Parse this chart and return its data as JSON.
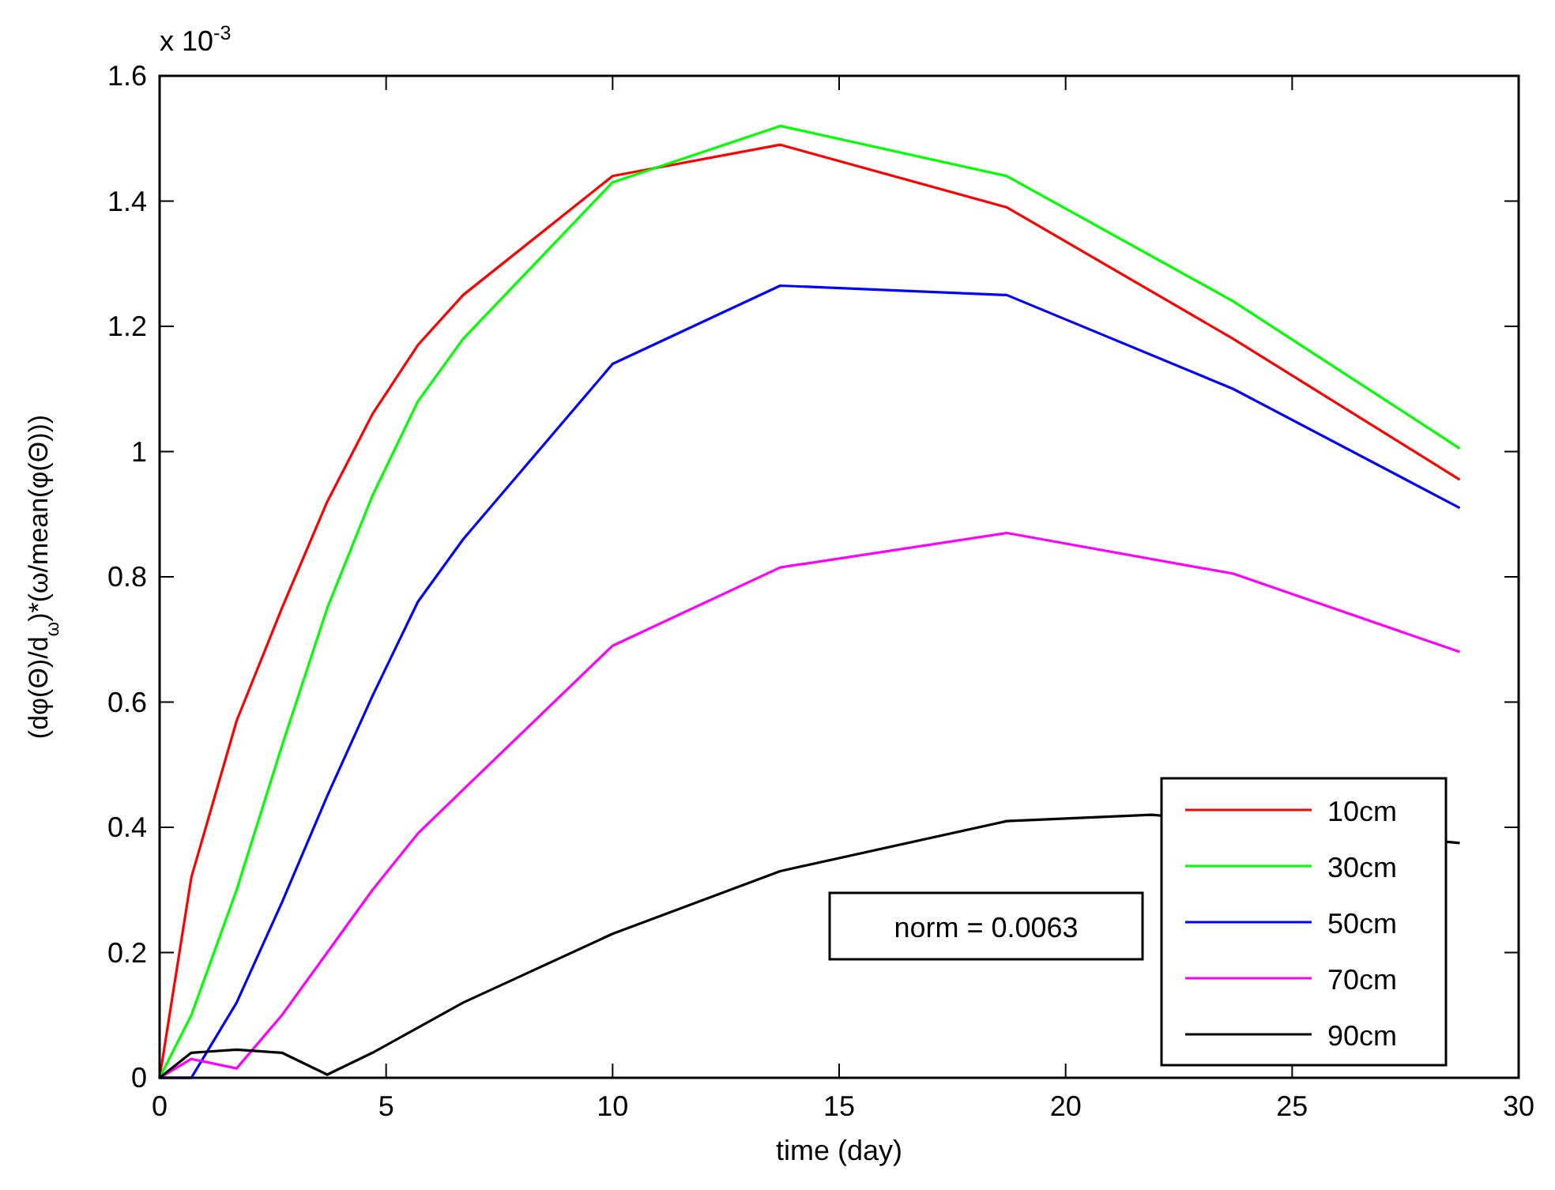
{
  "chart_data": {
    "type": "line",
    "xlabel": "time (day)",
    "ylabel": "(dφ(Θ)/d$_{ω}$)*(ω/mean(φ(Θ)))",
    "xlim": [
      0,
      30
    ],
    "xticks": [
      0,
      5,
      10,
      15,
      20,
      25,
      30
    ],
    "ylim": [
      0,
      1.6
    ],
    "yticks": [
      0,
      0.2,
      0.4,
      0.6,
      0.8,
      1,
      1.2,
      1.4,
      1.6
    ],
    "x": [
      0,
      0.7,
      1.7,
      2.7,
      3.7,
      4.7,
      5.7,
      6.7,
      10,
      13.7,
      18.7,
      23.7,
      28.7
    ],
    "legend": "bottom right",
    "grid": false,
    "line_style": "solid",
    "marker": "none",
    "annotations": [
      "x 10$^{-3}$",
      "norm = 0.0063"
    ],
    "series": [
      {
        "name": "10cm",
        "color": "#ff0000",
        "values": [
          0,
          0.32,
          0.57,
          0.75,
          0.92,
          1.06,
          1.17,
          1.25,
          1.44,
          1.49,
          1.39,
          1.18,
          0.955
        ]
      },
      {
        "name": "30cm",
        "color": "#00ff00",
        "values": [
          0,
          0.1,
          0.3,
          0.53,
          0.75,
          0.93,
          1.08,
          1.18,
          1.43,
          1.52,
          1.44,
          1.24,
          1.005
        ]
      },
      {
        "name": "50cm",
        "color": "#0000ff",
        "values": [
          0,
          0,
          0.12,
          0.28,
          0.45,
          0.61,
          0.76,
          0.86,
          1.14,
          1.265,
          1.25,
          1.1,
          0.91
        ]
      },
      {
        "name": "70cm",
        "color": "#ff00ff",
        "values": [
          0,
          0.03,
          0.015,
          0.1,
          0.2,
          0.3,
          0.39,
          0.46,
          0.69,
          0.815,
          0.87,
          0.805,
          0.68
        ]
      },
      {
        "name": "90cm",
        "color": "#000000",
        "x": [
          0,
          0.7,
          1.7,
          2.7,
          3.7,
          4.7,
          5.7,
          6.7,
          10,
          13.7,
          18.7,
          21.9,
          28.7
        ],
        "values": [
          0,
          0.04,
          0.045,
          0.04,
          0.005,
          0.04,
          0.08,
          0.12,
          0.23,
          0.33,
          0.41,
          0.42,
          0.375
        ]
      }
    ]
  }
}
